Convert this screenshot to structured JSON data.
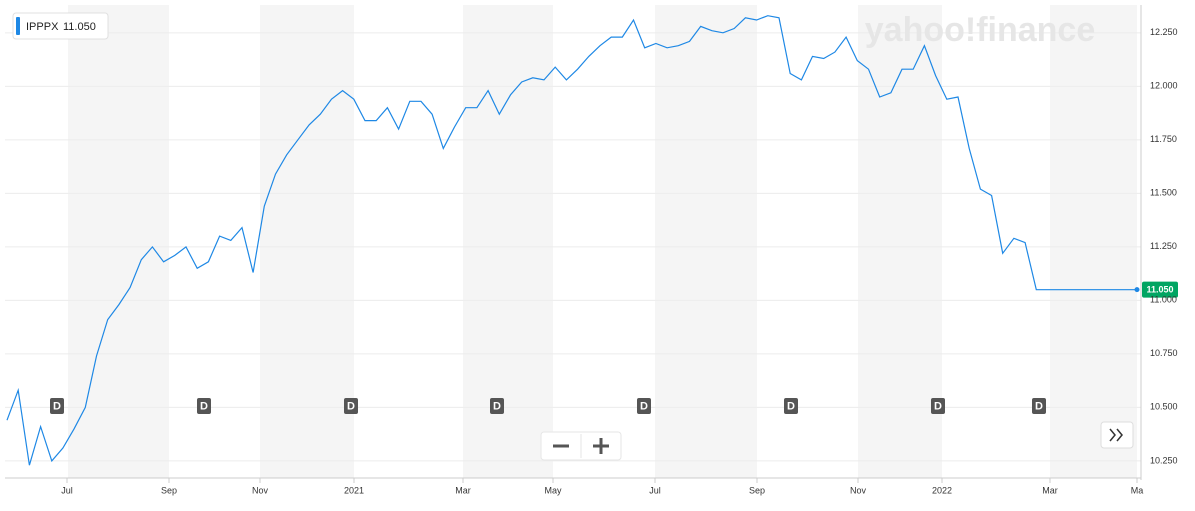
{
  "chart_data": {
    "type": "line",
    "watermark": "yahoo!finance",
    "current_price": {
      "value": 11.05,
      "label": "11.050"
    },
    "series": [
      {
        "name": "IPPPX",
        "color": "#1e88e5",
        "values": [
          10.44,
          10.58,
          10.23,
          10.41,
          10.25,
          10.31,
          10.4,
          10.5,
          10.74,
          10.91,
          10.98,
          11.06,
          11.19,
          11.25,
          11.18,
          11.21,
          11.25,
          11.15,
          11.18,
          11.3,
          11.28,
          11.34,
          11.13,
          11.44,
          11.59,
          11.68,
          11.75,
          11.82,
          11.87,
          11.94,
          11.98,
          11.94,
          11.84,
          11.84,
          11.9,
          11.8,
          11.93,
          11.93,
          11.87,
          11.71,
          11.81,
          11.9,
          11.9,
          11.98,
          11.87,
          11.96,
          12.02,
          12.04,
          12.03,
          12.09,
          12.03,
          12.08,
          12.14,
          12.19,
          12.23,
          12.23,
          12.31,
          12.18,
          12.2,
          12.18,
          12.19,
          12.21,
          12.28,
          12.26,
          12.25,
          12.27,
          12.32,
          12.31,
          12.33,
          12.32,
          12.06,
          12.03,
          12.14,
          12.13,
          12.16,
          12.23,
          12.12,
          12.08,
          11.95,
          11.97,
          12.08,
          12.08,
          12.19,
          12.05,
          11.94,
          11.95,
          11.71,
          11.52,
          11.49,
          11.22,
          11.29,
          11.27,
          11.05,
          11.05,
          11.05,
          11.05,
          11.05,
          11.05,
          11.05,
          11.05,
          11.05,
          11.05
        ]
      }
    ],
    "x_tick_labels": [
      "Jul",
      "Sep",
      "Nov",
      "2021",
      "Mar",
      "May",
      "Jul",
      "Sep",
      "Nov",
      "2022",
      "Mar",
      "Ma"
    ],
    "dividend_markers": [
      "D",
      "D",
      "D",
      "D",
      "D",
      "D",
      "D",
      "D"
    ],
    "ylim": [
      10.17,
      12.38
    ],
    "yticks": [
      {
        "value": 10.25,
        "label": "10.250"
      },
      {
        "value": 10.5,
        "label": "10.500"
      },
      {
        "value": 10.75,
        "label": "10.750"
      },
      {
        "value": 11,
        "label": "11.000"
      },
      {
        "value": 11.25,
        "label": "11.250"
      },
      {
        "value": 11.5,
        "label": "11.500"
      },
      {
        "value": 11.75,
        "label": "11.750"
      },
      {
        "value": 12,
        "label": "12.000"
      },
      {
        "value": 12.25,
        "label": "12.250"
      }
    ],
    "grid": true
  }
}
